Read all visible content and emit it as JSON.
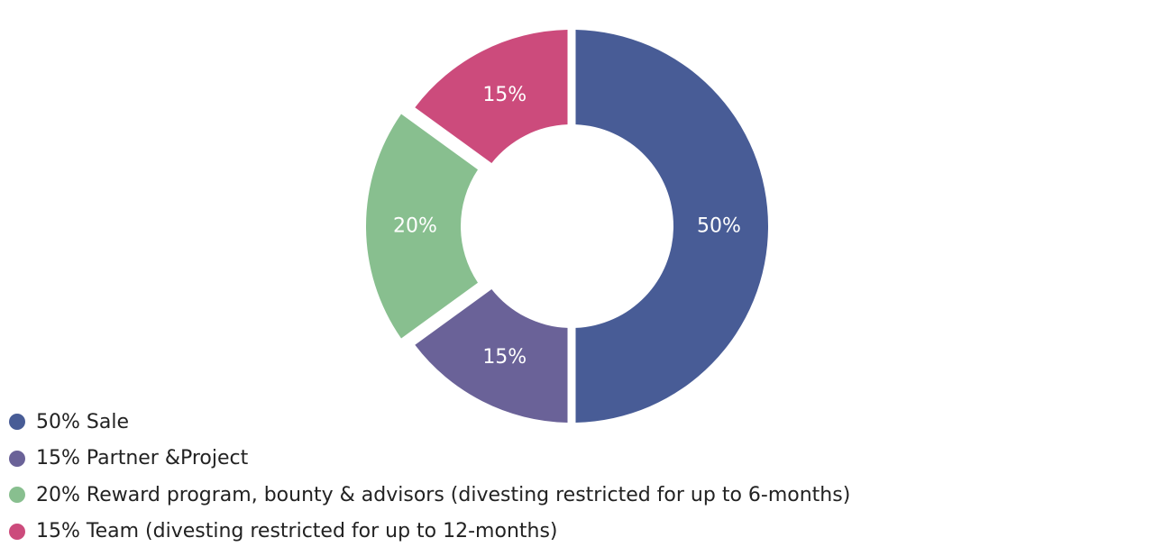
{
  "chart_data": {
    "type": "pie",
    "variant": "donut",
    "title": "",
    "slices": [
      {
        "label": "50%",
        "value": 50,
        "color": "#485c96",
        "legend": "50% Sale"
      },
      {
        "label": "15%",
        "value": 15,
        "color": "#6a6298",
        "legend": "15% Partner &Project"
      },
      {
        "label": "20%",
        "value": 20,
        "color": "#88bf8f",
        "legend": "20% Reward program, bounty & advisors (divesting restricted for up to 6-months)"
      },
      {
        "label": "15%",
        "value": 15,
        "color": "#cc4b7c",
        "legend": "15% Team (divesting restricted for up to 12-months)"
      }
    ],
    "legend_position": "bottom-left"
  }
}
